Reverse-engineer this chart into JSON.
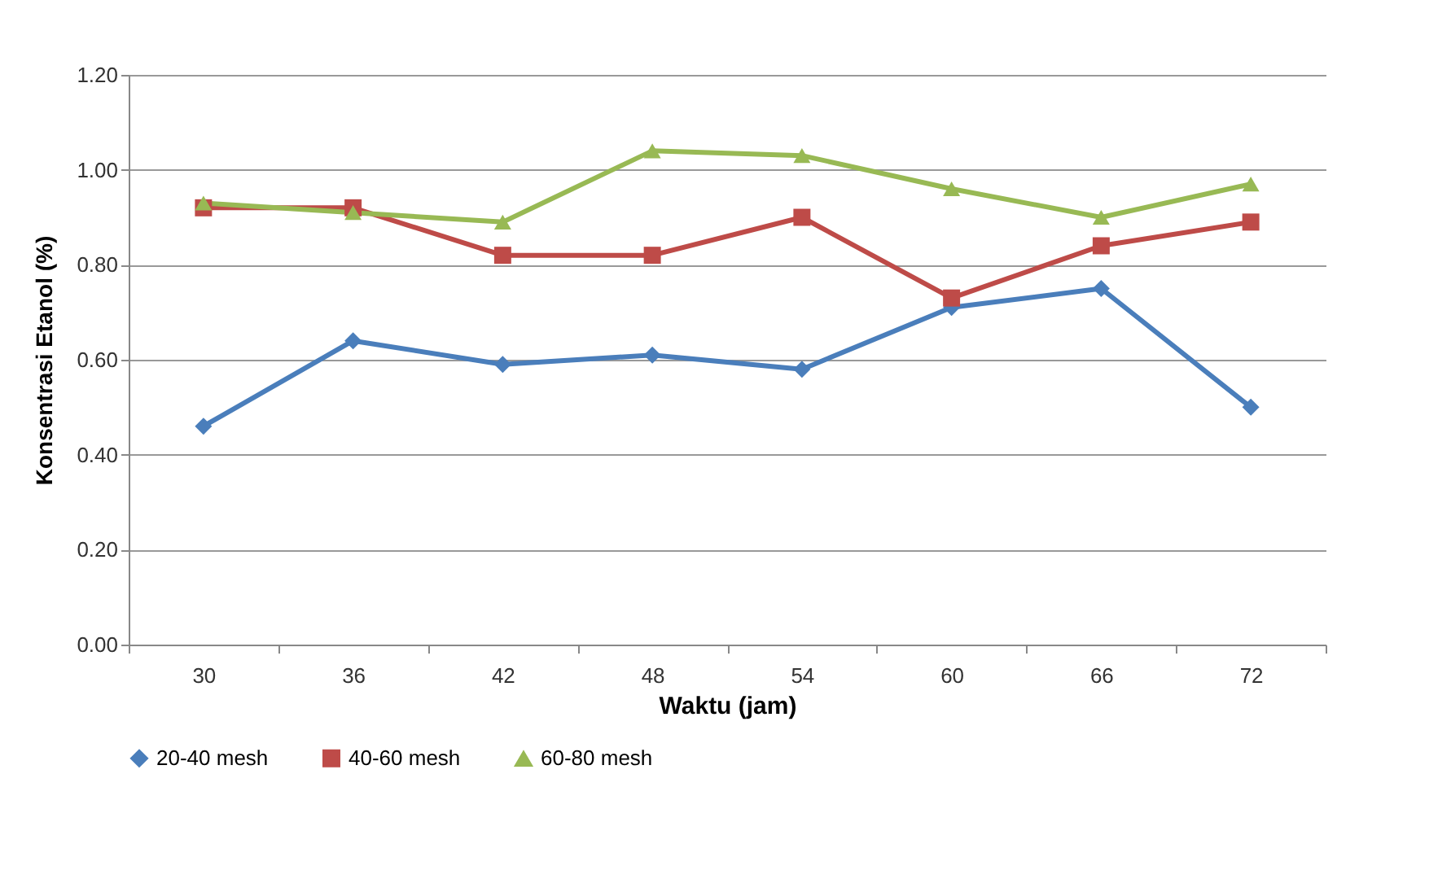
{
  "chart_data": {
    "type": "line",
    "xlabel": "Waktu (jam)",
    "ylabel": "Konsentrasi Etanol (%)",
    "categories": [
      "30",
      "36",
      "42",
      "48",
      "54",
      "60",
      "66",
      "72"
    ],
    "series": [
      {
        "name": "20-40 mesh",
        "color": "#4a7ebb",
        "marker": "diamond",
        "values": [
          0.46,
          0.64,
          0.59,
          0.61,
          0.58,
          0.71,
          0.75,
          0.5
        ]
      },
      {
        "name": "40-60 mesh",
        "color": "#be4b48",
        "marker": "square",
        "values": [
          0.92,
          0.92,
          0.82,
          0.82,
          0.9,
          0.73,
          0.84,
          0.89
        ]
      },
      {
        "name": "60-80 mesh",
        "color": "#98b954",
        "marker": "triangle",
        "values": [
          0.93,
          0.91,
          0.89,
          1.04,
          1.03,
          0.96,
          0.9,
          0.97
        ]
      }
    ],
    "ylim": [
      0,
      1.2
    ],
    "yticks": [
      {
        "value": 0,
        "label": "0.00"
      },
      {
        "value": 0.2,
        "label": "0.20"
      },
      {
        "value": 0.4,
        "label": "0.40"
      },
      {
        "value": 0.6,
        "label": "0.60"
      },
      {
        "value": 0.8,
        "label": "0.80"
      },
      {
        "value": 1.0,
        "label": "1.00"
      },
      {
        "value": 1.2,
        "label": "1.20"
      }
    ],
    "grid": "y",
    "legend": "bottom"
  }
}
